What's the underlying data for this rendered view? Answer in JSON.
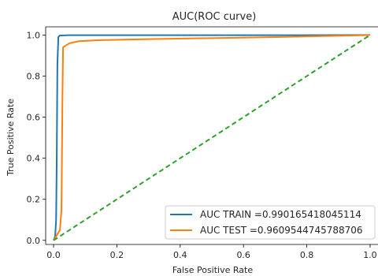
{
  "chart_data": {
    "type": "line",
    "title": "AUC(ROC curve)",
    "xlabel": "False Positive Rate",
    "ylabel": "True Positive Rate",
    "xlim": [
      -0.025,
      1.025
    ],
    "ylim": [
      -0.02,
      1.04
    ],
    "xticks": [
      "0.0",
      "0.2",
      "0.4",
      "0.6",
      "0.8",
      "1.0"
    ],
    "yticks": [
      "0.0",
      "0.2",
      "0.4",
      "0.6",
      "0.8",
      "1.0"
    ],
    "grid": false,
    "legend_position": "lower-right",
    "series": [
      {
        "name": "AUC TRAIN =0.990165418045114",
        "color": "#1f77b4",
        "style": "solid",
        "x": [
          0.0,
          0.005,
          0.008,
          0.01,
          0.012,
          0.015,
          0.018,
          0.02,
          0.05,
          0.1,
          0.2,
          0.4,
          0.6,
          0.8,
          1.0
        ],
        "y": [
          0.0,
          0.02,
          0.1,
          0.4,
          0.85,
          0.99,
          0.995,
          0.998,
          0.999,
          0.999,
          0.999,
          0.999,
          0.999,
          0.999,
          1.0
        ]
      },
      {
        "name": "AUC TEST =0.9609544745788706",
        "color": "#ff7f0e",
        "style": "solid",
        "x": [
          0.0,
          0.02,
          0.025,
          0.028,
          0.03,
          0.05,
          0.08,
          0.15,
          0.3,
          0.5,
          0.7,
          0.85,
          0.95,
          1.0
        ],
        "y": [
          0.0,
          0.05,
          0.15,
          0.7,
          0.94,
          0.96,
          0.97,
          0.975,
          0.98,
          0.985,
          0.99,
          0.995,
          0.998,
          1.0
        ]
      },
      {
        "name": "",
        "color": "#2ca02c",
        "style": "dashed",
        "x": [
          0.0,
          1.0
        ],
        "y": [
          0.0,
          1.0
        ]
      }
    ]
  }
}
